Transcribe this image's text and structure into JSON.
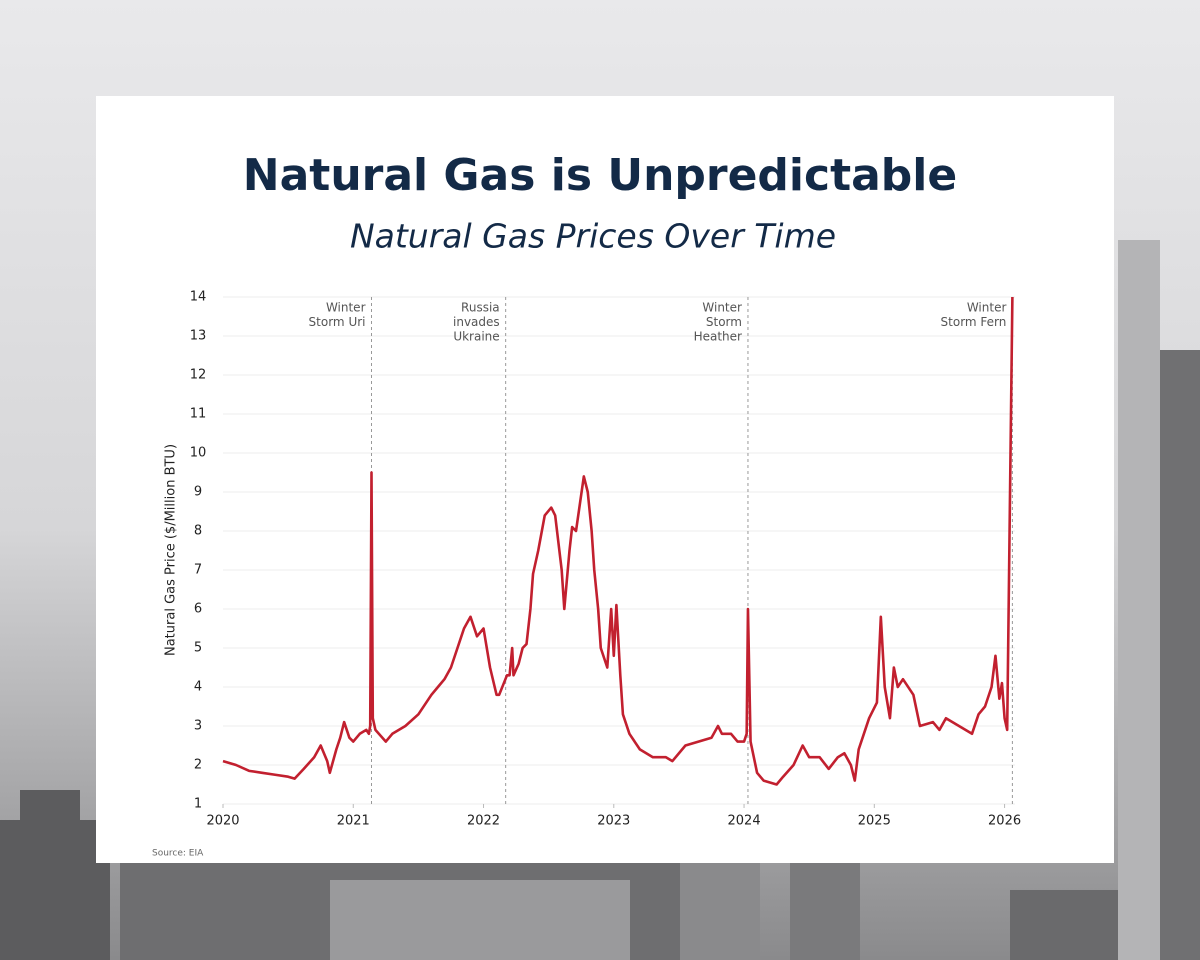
{
  "chart_data": {
    "type": "line",
    "title": "Natural Gas is Unpredictable",
    "subtitle": "Natural Gas Prices Over Time",
    "y_label": "Natural Gas Price ($/Million BTU)",
    "source": "Source: EIA",
    "color": "#c2202f",
    "grid": true,
    "xlim": [
      2020,
      2026.08
    ],
    "xticks": [
      2020,
      2021,
      2022,
      2023,
      2024,
      2025,
      2026
    ],
    "ylim": [
      1,
      14
    ],
    "yticks": [
      1,
      2,
      3,
      4,
      5,
      6,
      7,
      8,
      9,
      10,
      11,
      12,
      13,
      14
    ],
    "annotations": [
      {
        "x": 2021.14,
        "lines": [
          "Winter",
          "Storm Uri"
        ]
      },
      {
        "x": 2022.17,
        "lines": [
          "Russia",
          "invades",
          "Ukraine"
        ]
      },
      {
        "x": 2024.03,
        "lines": [
          "Winter",
          "Storm",
          "Heather"
        ]
      },
      {
        "x": 2026.06,
        "lines": [
          "Winter",
          "Storm Fern"
        ]
      }
    ],
    "x": [
      2020.0,
      2020.1,
      2020.2,
      2020.3,
      2020.4,
      2020.5,
      2020.55,
      2020.62,
      2020.7,
      2020.75,
      2020.8,
      2020.82,
      2020.87,
      2020.9,
      2020.93,
      2020.97,
      2021.0,
      2021.05,
      2021.1,
      2021.12,
      2021.13,
      2021.14,
      2021.15,
      2021.17,
      2021.25,
      2021.3,
      2021.4,
      2021.5,
      2021.6,
      2021.65,
      2021.7,
      2021.75,
      2021.8,
      2021.85,
      2021.9,
      2021.95,
      2022.0,
      2022.05,
      2022.1,
      2022.12,
      2022.18,
      2022.2,
      2022.22,
      2022.23,
      2022.27,
      2022.3,
      2022.33,
      2022.36,
      2022.38,
      2022.42,
      2022.47,
      2022.52,
      2022.55,
      2022.6,
      2022.62,
      2022.66,
      2022.68,
      2022.71,
      2022.74,
      2022.77,
      2022.8,
      2022.83,
      2022.85,
      2022.88,
      2022.9,
      2022.95,
      2022.98,
      2023.0,
      2023.02,
      2023.05,
      2023.07,
      2023.12,
      2023.2,
      2023.3,
      2023.4,
      2023.45,
      2023.55,
      2023.65,
      2023.75,
      2023.8,
      2023.83,
      2023.9,
      2023.95,
      2024.0,
      2024.02,
      2024.03,
      2024.05,
      2024.1,
      2024.15,
      2024.25,
      2024.3,
      2024.38,
      2024.45,
      2024.5,
      2024.58,
      2024.65,
      2024.72,
      2024.77,
      2024.82,
      2024.85,
      2024.88,
      2024.92,
      2024.96,
      2025.02,
      2025.05,
      2025.08,
      2025.12,
      2025.15,
      2025.18,
      2025.22,
      2025.3,
      2025.35,
      2025.45,
      2025.5,
      2025.55,
      2025.65,
      2025.7,
      2025.75,
      2025.8,
      2025.85,
      2025.9,
      2025.93,
      2025.96,
      2025.98,
      2026.0,
      2026.02,
      2026.06
    ],
    "values": [
      2.1,
      2.0,
      1.85,
      1.8,
      1.75,
      1.7,
      1.65,
      1.9,
      2.2,
      2.5,
      2.1,
      1.8,
      2.4,
      2.7,
      3.1,
      2.7,
      2.6,
      2.8,
      2.9,
      2.8,
      3.0,
      9.5,
      3.2,
      2.9,
      2.6,
      2.8,
      3.0,
      3.3,
      3.8,
      4.0,
      4.2,
      4.5,
      5.0,
      5.5,
      5.8,
      5.3,
      5.5,
      4.5,
      3.8,
      3.8,
      4.3,
      4.3,
      5.0,
      4.3,
      4.6,
      5.0,
      5.1,
      6.0,
      6.9,
      7.5,
      8.4,
      8.6,
      8.4,
      7.0,
      6.0,
      7.5,
      8.1,
      8.0,
      8.7,
      9.4,
      9.0,
      8.0,
      7.0,
      6.0,
      5.0,
      4.5,
      6.0,
      4.8,
      6.1,
      4.3,
      3.3,
      2.8,
      2.4,
      2.2,
      2.2,
      2.1,
      2.5,
      2.6,
      2.7,
      3.0,
      2.8,
      2.8,
      2.6,
      2.6,
      2.8,
      6.0,
      2.6,
      1.8,
      1.6,
      1.5,
      1.7,
      2.0,
      2.5,
      2.2,
      2.2,
      1.9,
      2.2,
      2.3,
      2.0,
      1.6,
      2.4,
      2.8,
      3.2,
      3.6,
      5.8,
      4.0,
      3.2,
      4.5,
      4.0,
      4.2,
      3.8,
      3.0,
      3.1,
      2.9,
      3.2,
      3.0,
      2.9,
      2.8,
      3.3,
      3.5,
      4.0,
      4.8,
      3.7,
      4.1,
      3.2,
      2.9,
      14.0
    ]
  }
}
